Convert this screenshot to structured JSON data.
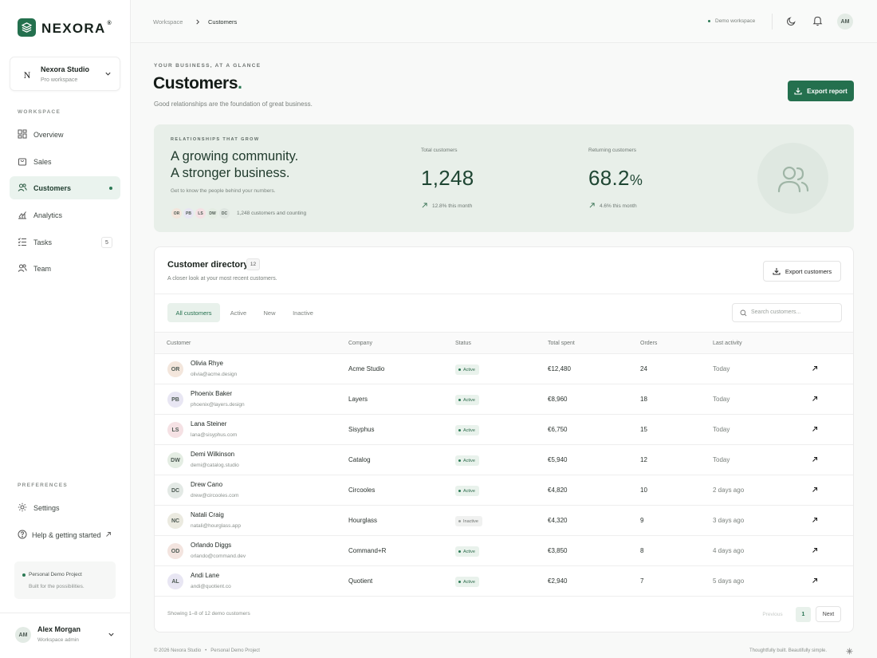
{
  "brand": {
    "name": "NEXORA",
    "mark": "®"
  },
  "workspace": {
    "initial": "N",
    "name": "Nexora Studio",
    "plan": "Pro workspace"
  },
  "sidebar": {
    "section_workspace": "WORKSPACE",
    "items": [
      {
        "label": "Overview",
        "icon": "grid-icon"
      },
      {
        "label": "Sales",
        "icon": "bag-icon"
      },
      {
        "label": "Customers",
        "icon": "users-icon",
        "active": true
      },
      {
        "label": "Analytics",
        "icon": "chart-icon"
      },
      {
        "label": "Tasks",
        "icon": "list-icon",
        "count": "5"
      },
      {
        "label": "Team",
        "icon": "team-icon"
      }
    ],
    "section_preferences": "PREFERENCES",
    "settings": "Settings",
    "help": "Help & getting started",
    "project": {
      "title": "Personal Demo Project",
      "subtitle": "Built for the possibilities."
    },
    "user": {
      "initials": "AM",
      "name": "Alex Morgan",
      "role": "Workspace admin"
    }
  },
  "topbar": {
    "crumb_root": "Workspace",
    "crumb_current": "Customers",
    "env": "Demo workspace",
    "avatar": "AM"
  },
  "header": {
    "eyebrow": "YOUR BUSINESS, AT A GLANCE",
    "title": "Customers",
    "period": ".",
    "subtitle": "Good relationships are the foundation of great business.",
    "export": "Export report"
  },
  "banner": {
    "eyebrow": "RELATIONSHIPS THAT GROW",
    "headline1": "A growing community.",
    "headline2": "A stronger business.",
    "desc": "Get to know the people behind your numbers.",
    "avatars": [
      "OR",
      "PB",
      "LS",
      "DW",
      "DC"
    ],
    "count_text": "1,248 customers and counting",
    "stat1": {
      "label": "Total customers",
      "value": "1,248",
      "trend": "12.8% this month"
    },
    "stat2": {
      "label": "Returning customers",
      "value": "68.2",
      "unit": "%",
      "trend": "4.6% this month"
    }
  },
  "directory": {
    "title": "Customer directory",
    "count": "12",
    "subtitle": "A closer look at your most recent customers.",
    "export": "Export customers",
    "tabs": [
      "All customers",
      "Active",
      "New",
      "Inactive"
    ],
    "search_placeholder": "Search customers...",
    "columns": [
      "Customer",
      "Company",
      "Status",
      "Total spent",
      "Orders",
      "Last activity"
    ],
    "rows": [
      {
        "initials": "OR",
        "name": "Olivia Rhye",
        "email": "olivia@acme.design",
        "company": "Acme Studio",
        "status": "Active",
        "spent": "€12,480",
        "orders": "24",
        "last": "Today",
        "color": "#f3e6dc"
      },
      {
        "initials": "PB",
        "name": "Phoenix Baker",
        "email": "phoenix@layers.design",
        "company": "Layers",
        "status": "Active",
        "spent": "€8,960",
        "orders": "18",
        "last": "Today",
        "color": "#e8e6f3"
      },
      {
        "initials": "LS",
        "name": "Lana Steiner",
        "email": "lana@sisyphus.com",
        "company": "Sisyphus",
        "status": "Active",
        "spent": "€6,750",
        "orders": "15",
        "last": "Today",
        "color": "#f5e1e4"
      },
      {
        "initials": "DW",
        "name": "Demi Wilkinson",
        "email": "demi@catalog.studio",
        "company": "Catalog",
        "status": "Active",
        "spent": "€5,940",
        "orders": "12",
        "last": "Today",
        "color": "#e4ede3"
      },
      {
        "initials": "DC",
        "name": "Drew Cano",
        "email": "drew@circooles.com",
        "company": "Circooles",
        "status": "Active",
        "spent": "€4,820",
        "orders": "10",
        "last": "2 days ago",
        "color": "#e3e9e5"
      },
      {
        "initials": "NC",
        "name": "Natali Craig",
        "email": "natali@hourglass.app",
        "company": "Hourglass",
        "status": "Inactive",
        "spent": "€4,320",
        "orders": "9",
        "last": "3 days ago",
        "color": "#ebeae0"
      },
      {
        "initials": "OD",
        "name": "Orlando Diggs",
        "email": "orlando@command.dev",
        "company": "Command+R",
        "status": "Active",
        "spent": "€3,850",
        "orders": "8",
        "last": "4 days ago",
        "color": "#f3e4df"
      },
      {
        "initials": "AL",
        "name": "Andi Lane",
        "email": "andi@quotient.co",
        "company": "Quotient",
        "status": "Active",
        "spent": "€2,940",
        "orders": "7",
        "last": "5 days ago",
        "color": "#e8e6f3"
      }
    ],
    "footer_text": "Showing 1–8 of 12 demo customers",
    "prev": "Previous",
    "page": "1",
    "next": "Next"
  },
  "footer": {
    "left": "© 2026 Nexora Studio",
    "sep": "•",
    "project": "Personal Demo Project",
    "right": "Thoughtfully built. Beautifully simple."
  },
  "colors": {
    "accent": "#24704e",
    "banner_bg": "#e8efe9",
    "active_bg": "#eaf3ee"
  }
}
